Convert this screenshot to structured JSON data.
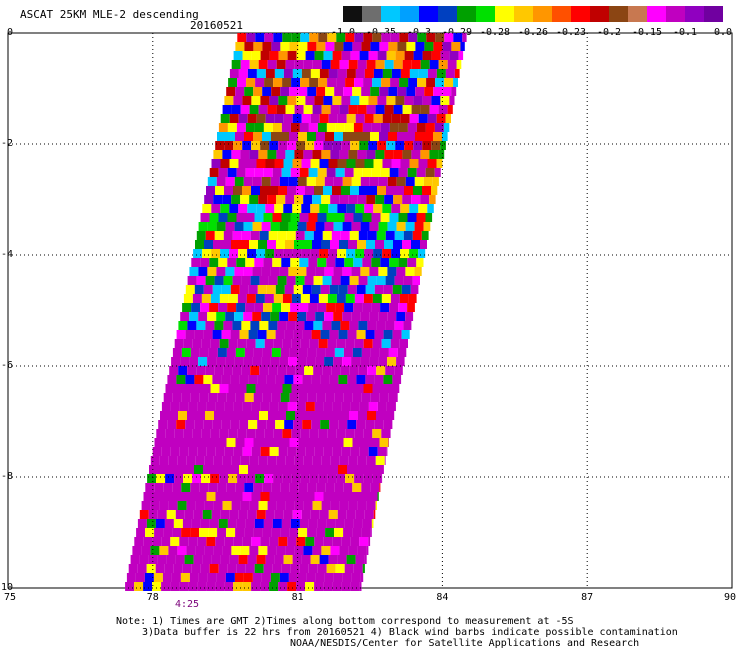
{
  "title": "ASCAT 25KM MLE-2 descending",
  "date": "20160521",
  "colorbar": {
    "colors": [
      "#101010",
      "#6e6e6e",
      "#00c8ff",
      "#00a0ff",
      "#0000ff",
      "#0040c0",
      "#00a000",
      "#00e000",
      "#ffff00",
      "#ffc800",
      "#ff9600",
      "#ff5000",
      "#ff0000",
      "#c00000",
      "#8b4513",
      "#c87850",
      "#ff00ff",
      "#c000c0",
      "#9000c0",
      "#7000a0"
    ],
    "labels": [
      "-1.0",
      "-0.35",
      "-0.3",
      "-0.29",
      "-0.28",
      "-0.26",
      "-0.23",
      "-0.2",
      "-0.15",
      "-0.1",
      "0.0"
    ]
  },
  "axes": {
    "x_ticks": [
      "75",
      "78",
      "81",
      "84",
      "87",
      "90"
    ],
    "y_ticks": [
      "0",
      "-2",
      "-4",
      "-6",
      "-8",
      "-10"
    ],
    "x_range": [
      75,
      90
    ],
    "y_range": [
      -10,
      0
    ],
    "grid": true
  },
  "time_label": "4:25",
  "notes": [
    "Note: 1) Times are GMT 2)Times along bottom correspond to measurement at -5S",
    "3)Data buffer is 22 hrs from 20160521 4) Black wind barbs indicate possible contamination",
    "NOAA/NESDIS/Center for Satellite Applications and Research"
  ],
  "swath": {
    "corners": {
      "top_left_lon": 79.75,
      "top_right_lon": 84.5,
      "bottom_left_lon": 77.4,
      "bottom_right_lon": 82.3
    }
  }
}
